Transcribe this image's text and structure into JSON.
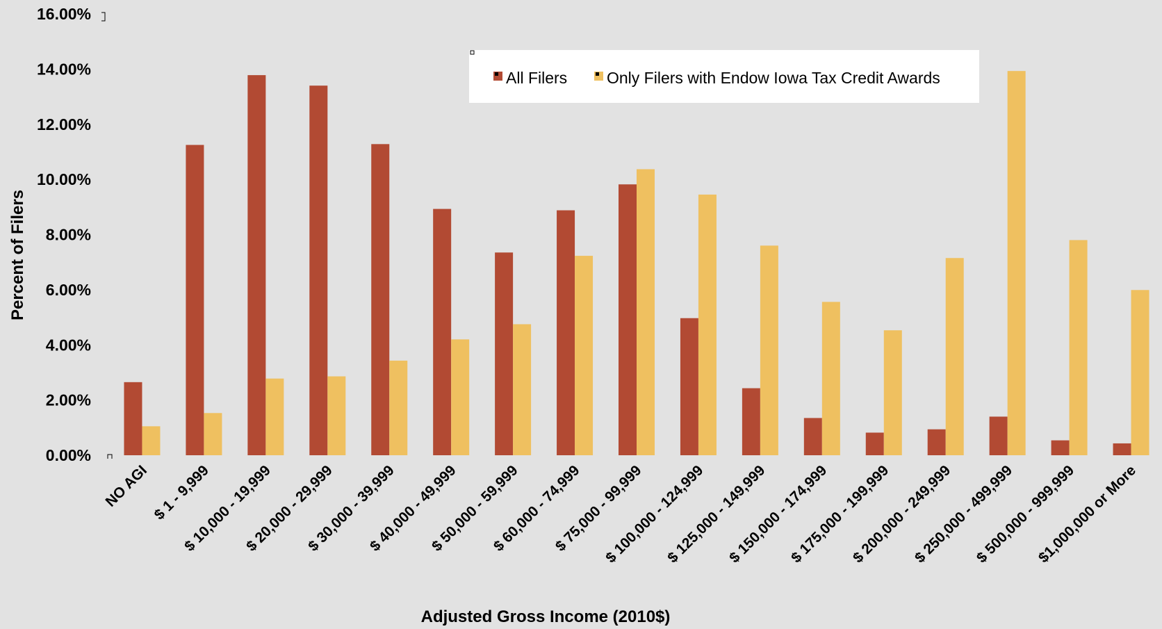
{
  "chart_data": {
    "type": "bar",
    "xlabel": "Adjusted Gross Income (2010$)",
    "ylabel": "Percent of Filers",
    "ylim": [
      0,
      16
    ],
    "y_ticks": [
      "0.00%",
      "2.00%",
      "4.00%",
      "6.00%",
      "8.00%",
      "10.00%",
      "12.00%",
      "14.00%",
      "16.00%"
    ],
    "grid": false,
    "legend_position": "top-right",
    "categories": [
      "NO AGI",
      "$ 1 - 9,999",
      "$ 10,000 - 19,999",
      "$ 20,000 - 29,999",
      "$ 30,000 - 39,999",
      "$ 40,000 - 49,999",
      "$ 50,000 - 59,999",
      "$ 60,000 - 74,999",
      "$ 75,000 - 99,999",
      "$ 100,000 - 124,999",
      "$ 125,000 - 149,999",
      "$ 150,000 - 174,999",
      "$ 175,000 - 199,999",
      "$ 200,000 - 249,999",
      "$ 250,000 - 499,999",
      "$ 500,000 - 999,999",
      "$1,000,000 or More"
    ],
    "series": [
      {
        "name": "All Filers",
        "color": "#b24a33",
        "values": [
          2.65,
          11.25,
          13.78,
          13.4,
          11.28,
          8.93,
          7.35,
          8.88,
          9.82,
          4.97,
          2.43,
          1.35,
          0.82,
          0.94,
          1.4,
          0.54,
          0.43
        ]
      },
      {
        "name": "Only Filers with Endow Iowa Tax Credit Awards",
        "color": "#efc060",
        "values": [
          1.05,
          1.53,
          2.78,
          2.86,
          3.43,
          4.2,
          4.75,
          7.23,
          10.37,
          9.45,
          7.6,
          5.56,
          4.53,
          7.15,
          13.93,
          7.8,
          5.99
        ]
      }
    ]
  }
}
